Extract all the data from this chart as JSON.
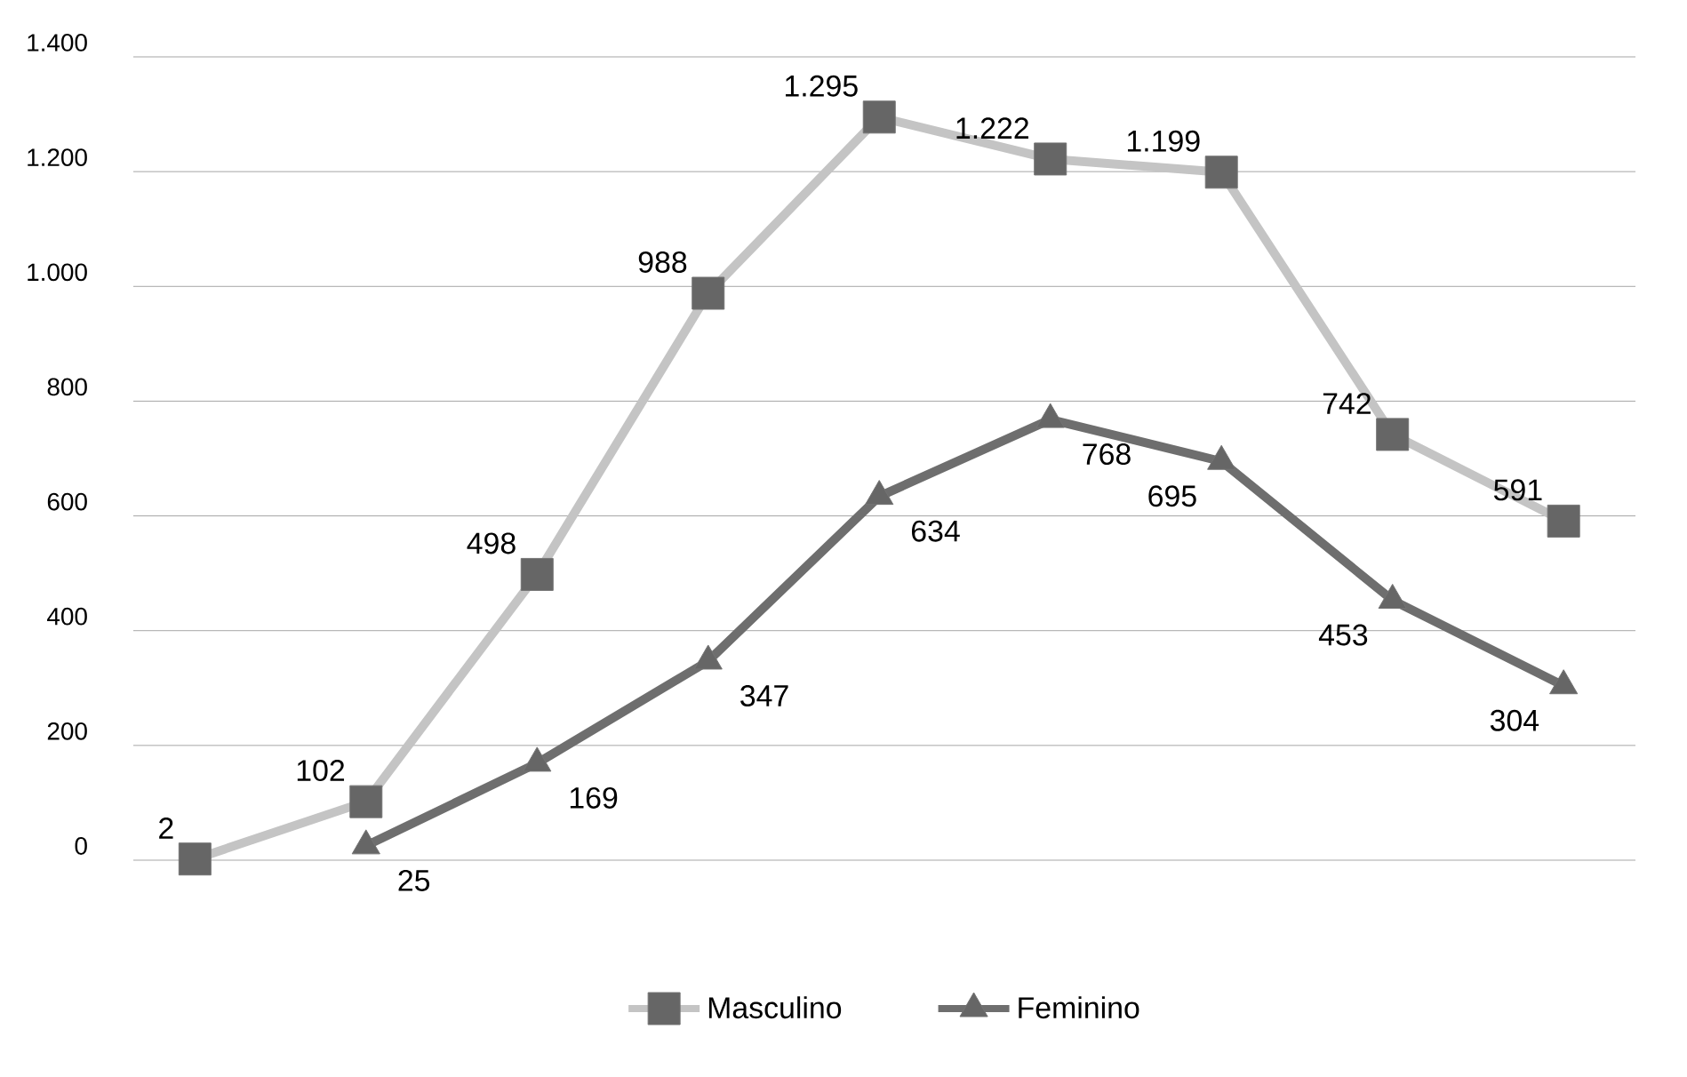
{
  "chart_data": {
    "type": "line",
    "categories": [
      null,
      null,
      null,
      null,
      null,
      null,
      null,
      null,
      null
    ],
    "ylim": [
      0,
      1400
    ],
    "yticks": [
      0,
      200,
      400,
      600,
      800,
      {
        "value": 1000,
        "label": "1.000"
      },
      {
        "value": 1200,
        "label": "1.200"
      },
      {
        "value": 1400,
        "label": "1.400"
      }
    ],
    "grid": "y",
    "legend": "bottom",
    "tick_labels": "y",
    "line_style": "solid",
    "series": [
      {
        "name": "Masculino",
        "color": "#c4c4c4",
        "marker": "square",
        "values": [
          2,
          102,
          498,
          988,
          1295,
          1222,
          1199,
          742,
          591
        ],
        "value_labels": [
          "2",
          "102",
          "498",
          "988",
          "1.295",
          "1.222",
          "1.199",
          "742",
          "591"
        ]
      },
      {
        "name": "Feminino",
        "color": "#6e6e6e",
        "marker": "triangle",
        "values": [
          null,
          25,
          169,
          347,
          634,
          768,
          695,
          453,
          304
        ],
        "value_labels": [
          null,
          "25",
          "169",
          "347",
          "634",
          "768",
          "695",
          "453",
          "304"
        ]
      }
    ]
  }
}
